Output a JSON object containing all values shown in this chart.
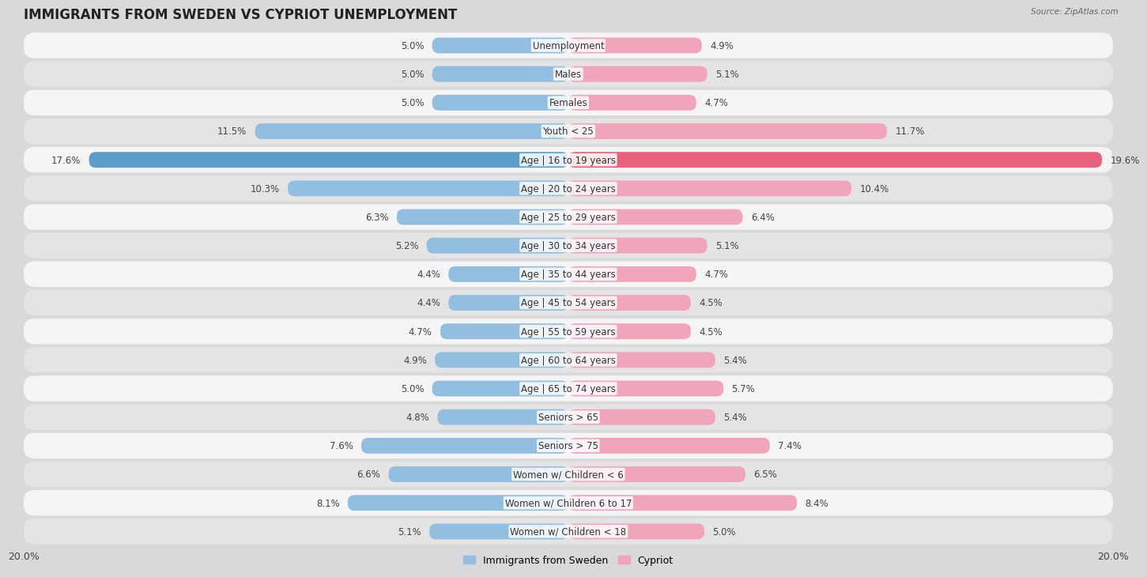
{
  "title": "IMMIGRANTS FROM SWEDEN VS CYPRIOT UNEMPLOYMENT",
  "source": "Source: ZipAtlas.com",
  "categories": [
    "Unemployment",
    "Males",
    "Females",
    "Youth < 25",
    "Age | 16 to 19 years",
    "Age | 20 to 24 years",
    "Age | 25 to 29 years",
    "Age | 30 to 34 years",
    "Age | 35 to 44 years",
    "Age | 45 to 54 years",
    "Age | 55 to 59 years",
    "Age | 60 to 64 years",
    "Age | 65 to 74 years",
    "Seniors > 65",
    "Seniors > 75",
    "Women w/ Children < 6",
    "Women w/ Children 6 to 17",
    "Women w/ Children < 18"
  ],
  "sweden_values": [
    5.0,
    5.0,
    5.0,
    11.5,
    17.6,
    10.3,
    6.3,
    5.2,
    4.4,
    4.4,
    4.7,
    4.9,
    5.0,
    4.8,
    7.6,
    6.6,
    8.1,
    5.1
  ],
  "cypriot_values": [
    4.9,
    5.1,
    4.7,
    11.7,
    19.6,
    10.4,
    6.4,
    5.1,
    4.7,
    4.5,
    4.5,
    5.4,
    5.7,
    5.4,
    7.4,
    6.5,
    8.4,
    5.0
  ],
  "sweden_color": "#92bfdf",
  "cypriot_color": "#f2a5ba",
  "highlight_sweden_color": "#5a9ec9",
  "highlight_cypriot_color": "#e8607a",
  "row_color_even": "#f5f5f5",
  "row_color_odd": "#e4e4e4",
  "background_color": "#d9d9d9",
  "axis_limit": 20.0,
  "bar_height": 0.55,
  "title_fontsize": 12,
  "label_fontsize": 8.5,
  "value_fontsize": 8.5,
  "legend_fontsize": 9,
  "highlight_rows": [
    4
  ]
}
